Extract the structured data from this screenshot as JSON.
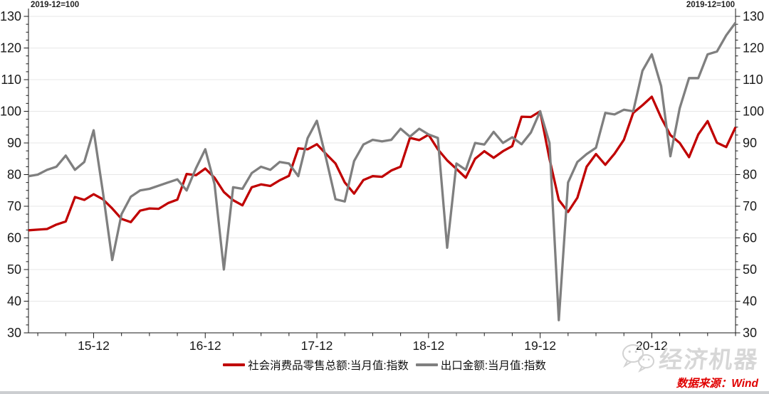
{
  "header": {
    "left_note": "2019-12=100",
    "right_note": "2019-12=100"
  },
  "chart_data": {
    "type": "line",
    "title": "",
    "note": "2019-12=100",
    "grid": "horizontal",
    "legend_position": "bottom",
    "ylim": [
      30,
      130
    ],
    "ytick_step": 10,
    "ytick_minor_step": 2.5,
    "x_major_tick_suffix": "-12",
    "x_minor_tick_suffixes": [
      "-03",
      "-06",
      "-09"
    ],
    "x_major_tick_labels": [
      "15-12",
      "16-12",
      "17-12",
      "18-12",
      "19-12",
      "20-12"
    ],
    "x": [
      "15-05",
      "15-06",
      "15-07",
      "15-08",
      "15-09",
      "15-10",
      "15-11",
      "15-12",
      "16-01",
      "16-02",
      "16-03",
      "16-04",
      "16-05",
      "16-06",
      "16-07",
      "16-08",
      "16-09",
      "16-10",
      "16-11",
      "16-12",
      "17-01",
      "17-02",
      "17-03",
      "17-04",
      "17-05",
      "17-06",
      "17-07",
      "17-08",
      "17-09",
      "17-10",
      "17-11",
      "17-12",
      "18-01",
      "18-02",
      "18-03",
      "18-04",
      "18-05",
      "18-06",
      "18-07",
      "18-08",
      "18-09",
      "18-10",
      "18-11",
      "18-12",
      "19-01",
      "19-02",
      "19-03",
      "19-04",
      "19-05",
      "19-06",
      "19-07",
      "19-08",
      "19-09",
      "19-10",
      "19-11",
      "19-12",
      "20-01",
      "20-02",
      "20-03",
      "20-04",
      "20-05",
      "20-06",
      "20-07",
      "20-08",
      "20-09",
      "20-10",
      "20-11",
      "20-12",
      "21-01",
      "21-02",
      "21-03",
      "21-04",
      "21-05",
      "21-06",
      "21-07",
      "21-08",
      "21-09"
    ],
    "series": [
      {
        "name": "社会消费品零售总额:当月值:指数",
        "color": "#c00000",
        "values": [
          62.4,
          62.6,
          62.8,
          64.2,
          65.2,
          72.9,
          72,
          73.8,
          72.2,
          69.3,
          66,
          65,
          68.6,
          69.3,
          69.2,
          71,
          72.1,
          80.2,
          79.8,
          81.9,
          79,
          74.5,
          71.9,
          70.3,
          76,
          76.9,
          76.4,
          78.2,
          79.6,
          88.3,
          88,
          89.6,
          86.5,
          83.5,
          77.5,
          74,
          78.3,
          79.5,
          79.3,
          81.3,
          82.5,
          91.6,
          90.9,
          92.6,
          88,
          84.5,
          81.8,
          79,
          85,
          87.4,
          85.3,
          87.4,
          89,
          98.3,
          98.2,
          100,
          85,
          72,
          68.2,
          72.7,
          82.5,
          86.5,
          83.1,
          86.6,
          91,
          99.5,
          101.9,
          104.6,
          98,
          92.5,
          90,
          85.5,
          92.7,
          96.9,
          90.1,
          88.7,
          95
        ]
      },
      {
        "name": "出口金额:当月值:指数",
        "color": "#7f7f7f",
        "values": [
          79.5,
          80,
          81.5,
          82.5,
          86,
          81.5,
          84,
          94,
          74.5,
          53,
          67.5,
          73,
          75,
          75.5,
          76.5,
          77.5,
          78.5,
          75,
          82,
          88,
          77,
          50,
          76,
          75.5,
          80.5,
          82.5,
          81.5,
          84,
          83.5,
          79.5,
          91.5,
          97,
          85,
          72.2,
          71.5,
          84.3,
          89.5,
          91,
          90.5,
          91,
          94.5,
          92,
          94.5,
          92.7,
          91.6,
          56.9,
          83.5,
          81.5,
          90,
          89.5,
          93.5,
          90,
          91.8,
          89.6,
          93.3,
          100,
          90,
          34,
          77.5,
          84,
          86.5,
          88.5,
          99.5,
          99,
          100.5,
          100,
          112.8,
          118,
          108,
          85.8,
          101,
          110.5,
          110.5,
          118,
          118.9,
          124,
          128
        ]
      }
    ]
  },
  "footer": {
    "source_label": "数据来源：Wind",
    "watermark_text": "经济机器",
    "watermark_icon": "wechat-icon"
  }
}
